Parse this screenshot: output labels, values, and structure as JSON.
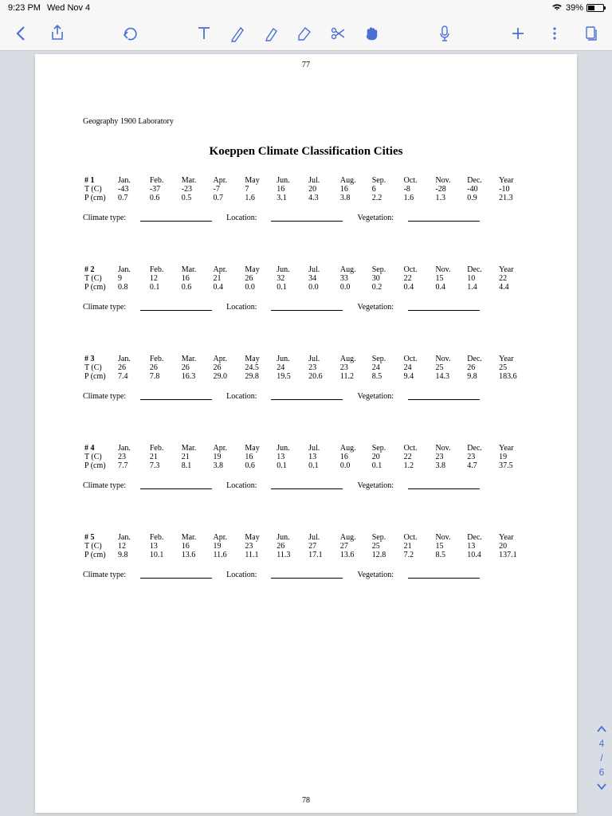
{
  "status": {
    "time": "9:23 PM",
    "date": "Wed Nov 4",
    "battery_pct": "39%"
  },
  "page": {
    "top_number": "77",
    "bottom_number": "78",
    "lab_label": "Geography 1900 Laboratory",
    "title": "Koeppen Climate Classification Cities",
    "months": [
      "Jan.",
      "Feb.",
      "Mar.",
      "Apr.",
      "May",
      "Jun.",
      "Jul.",
      "Aug.",
      "Sep.",
      "Oct.",
      "Nov.",
      "Dec.",
      "Year"
    ],
    "row_labels": {
      "t": "T (C)",
      "p": "P (cm)"
    },
    "blank_labels": {
      "climate": "Climate type:",
      "location": "Location:",
      "vegetation": "Vegetation:"
    },
    "cities": [
      {
        "num": "# 1",
        "t": [
          "-43",
          "-37",
          "-23",
          "-7",
          "7",
          "16",
          "20",
          "16",
          "6",
          "-8",
          "-28",
          "-40",
          "-10"
        ],
        "p": [
          "0.7",
          "0.6",
          "0.5",
          "0.7",
          "1.6",
          "3.1",
          "4.3",
          "3.8",
          "2.2",
          "1.6",
          "1.3",
          "0.9",
          "21.3"
        ]
      },
      {
        "num": "# 2",
        "t": [
          "9",
          "12",
          "16",
          "21",
          "26",
          "32",
          "34",
          "33",
          "30",
          "22",
          "15",
          "10",
          "22"
        ],
        "p": [
          "0.8",
          "0.1",
          "0.6",
          "0.4",
          "0.0",
          "0.1",
          "0.0",
          "0.0",
          "0.2",
          "0.4",
          "0.4",
          "1.4",
          "4.4"
        ]
      },
      {
        "num": "# 3",
        "t": [
          "26",
          "26",
          "26",
          "26",
          "24.5",
          "24",
          "23",
          "23",
          "24",
          "24",
          "25",
          "26",
          "25"
        ],
        "p": [
          "7.4",
          "7.8",
          "16.3",
          "29.0",
          "29.8",
          "19.5",
          "20.6",
          "11.2",
          "8.5",
          "9.4",
          "14.3",
          "9.8",
          "183.6"
        ]
      },
      {
        "num": "# 4",
        "t": [
          "23",
          "21",
          "21",
          "19",
          "16",
          "13",
          "13",
          "16",
          "20",
          "22",
          "23",
          "23",
          "19"
        ],
        "p": [
          "7.7",
          "7.3",
          "8.1",
          "3.8",
          "0.6",
          "0.1",
          "0.1",
          "0.0",
          "0.1",
          "1.2",
          "3.8",
          "4.7",
          "37.5"
        ]
      },
      {
        "num": "# 5",
        "t": [
          "12",
          "13",
          "16",
          "19",
          "23",
          "26",
          "27",
          "27",
          "25",
          "21",
          "15",
          "13",
          "20"
        ],
        "p": [
          "9.8",
          "10.1",
          "13.6",
          "11.6",
          "11.1",
          "11.3",
          "17.1",
          "13.6",
          "12.8",
          "7.2",
          "8.5",
          "10.4",
          "137.1"
        ]
      }
    ]
  },
  "nav": {
    "current": "4",
    "sep": "/",
    "total": "6"
  },
  "colors": {
    "accent": "#4a6fd4",
    "page_bg": "#ffffff",
    "app_bg": "#d8dde3"
  }
}
